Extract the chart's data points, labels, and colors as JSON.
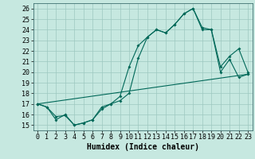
{
  "xlabel": "Humidex (Indice chaleur)",
  "bg_color": "#c6e8e0",
  "grid_color": "#9dc8c0",
  "line_color": "#006858",
  "xlim": [
    -0.5,
    23.5
  ],
  "ylim": [
    14.5,
    26.5
  ],
  "yticks": [
    15,
    16,
    17,
    18,
    19,
    20,
    21,
    22,
    23,
    24,
    25,
    26
  ],
  "xticks": [
    0,
    1,
    2,
    3,
    4,
    5,
    6,
    7,
    8,
    9,
    10,
    11,
    12,
    13,
    14,
    15,
    16,
    17,
    18,
    19,
    20,
    21,
    22,
    23
  ],
  "series1_x": [
    0,
    1,
    2,
    3,
    4,
    5,
    6,
    7,
    8,
    9,
    10,
    11,
    12,
    13,
    14,
    15,
    16,
    17,
    18,
    19,
    20,
    21,
    22,
    23
  ],
  "series1_y": [
    17.0,
    16.7,
    15.5,
    16.0,
    15.0,
    15.2,
    15.5,
    16.7,
    17.0,
    17.3,
    18.0,
    21.3,
    23.3,
    24.0,
    23.7,
    24.5,
    25.5,
    26.0,
    24.2,
    24.0,
    20.0,
    21.2,
    19.5,
    19.8
  ],
  "series2_x": [
    0,
    1,
    2,
    3,
    4,
    5,
    6,
    7,
    8,
    9,
    10,
    11,
    12,
    13,
    14,
    15,
    16,
    17,
    18,
    19,
    20,
    21,
    22,
    23
  ],
  "series2_y": [
    17.0,
    16.7,
    15.8,
    15.9,
    15.0,
    15.2,
    15.5,
    16.5,
    17.0,
    17.7,
    20.5,
    22.5,
    23.3,
    24.0,
    23.7,
    24.5,
    25.5,
    26.0,
    24.0,
    24.0,
    20.5,
    21.5,
    22.2,
    20.0
  ],
  "series3_x": [
    0,
    23
  ],
  "series3_y": [
    17.0,
    19.8
  ],
  "font_size_label": 7,
  "font_size_tick": 6,
  "marker_size": 2.0,
  "line_width": 0.8
}
